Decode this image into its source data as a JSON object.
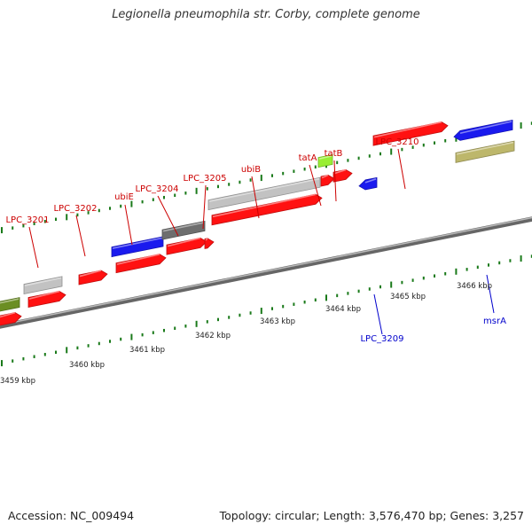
{
  "title": "Legionella pneumophila str. Corby, complete genome",
  "footer": {
    "accession": "Accession: NC_009494",
    "summary": "Topology: circular; Length: 3,576,470 bp; Genes: 3,257"
  },
  "colors": {
    "forward_label": "#cc0000",
    "reverse_label": "#0000cc",
    "gene_red": "#ff1111",
    "gene_blue": "#1a1aee",
    "gene_gray": "#c2c2c2",
    "gene_darkgray": "#6e6e6e",
    "gene_olive": "#6b8e23",
    "gene_khaki": "#bdb76b",
    "gene_lime": "#99ee33",
    "tick_green": "#1a7a1a",
    "backbone": "#888888"
  },
  "forward_labels": [
    {
      "name": "LPC_3201"
    },
    {
      "name": "LPC_3202"
    },
    {
      "name": "ubiE"
    },
    {
      "name": "LPC_3204"
    },
    {
      "name": "LPC_3205"
    },
    {
      "name": "ubiB"
    },
    {
      "name": "tatA"
    },
    {
      "name": "tatB"
    },
    {
      "name": "LPC_3210"
    }
  ],
  "reverse_labels": [
    {
      "name": "LPC_3209"
    },
    {
      "name": "msrA"
    }
  ],
  "scale_labels": [
    "3459 kbp",
    "3460 kbp",
    "3461 kbp",
    "3462 kbp",
    "3463 kbp",
    "3464 kbp",
    "3465 kbp",
    "3466 kbp"
  ]
}
